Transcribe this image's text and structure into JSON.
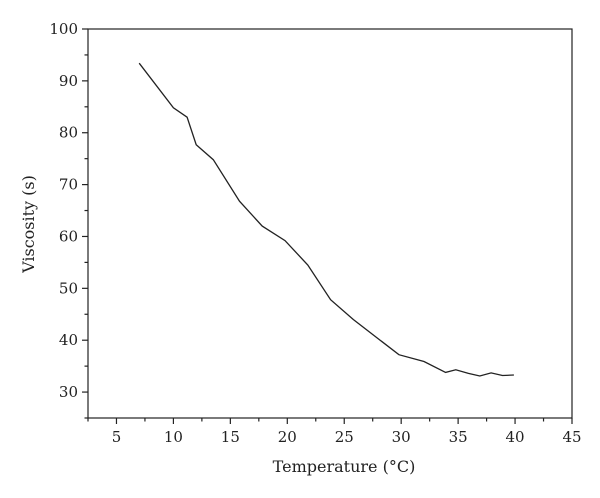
{
  "chart_data": {
    "type": "line",
    "title": "",
    "xlabel": "Temperature (°C)",
    "ylabel": "Viscosity (s)",
    "xlim": [
      2.5,
      45
    ],
    "ylim": [
      25,
      100
    ],
    "x_ticks": [
      5,
      10,
      15,
      20,
      25,
      30,
      35,
      40,
      45
    ],
    "y_ticks": [
      30,
      40,
      50,
      60,
      70,
      80,
      90,
      100
    ],
    "x_minor_step": 2.5,
    "y_minor_step": 5,
    "grid": false,
    "legend": "none",
    "series": [
      {
        "x": [
          7.0,
          10.0,
          11.2,
          12.0,
          13.5,
          15.8,
          17.8,
          19.8,
          21.8,
          23.8,
          25.8,
          27.8,
          29.8,
          32.0,
          33.9,
          34.8,
          35.9,
          36.9,
          37.9,
          38.9,
          39.9
        ],
        "y": [
          93.4,
          84.8,
          83.0,
          77.7,
          74.8,
          66.8,
          62.0,
          59.2,
          54.5,
          47.8,
          44.0,
          40.6,
          37.2,
          35.9,
          33.8,
          34.3,
          33.6,
          33.1,
          33.7,
          33.2,
          33.3
        ]
      }
    ],
    "colors": {
      "line": "#222222",
      "axis": "#222222"
    }
  }
}
